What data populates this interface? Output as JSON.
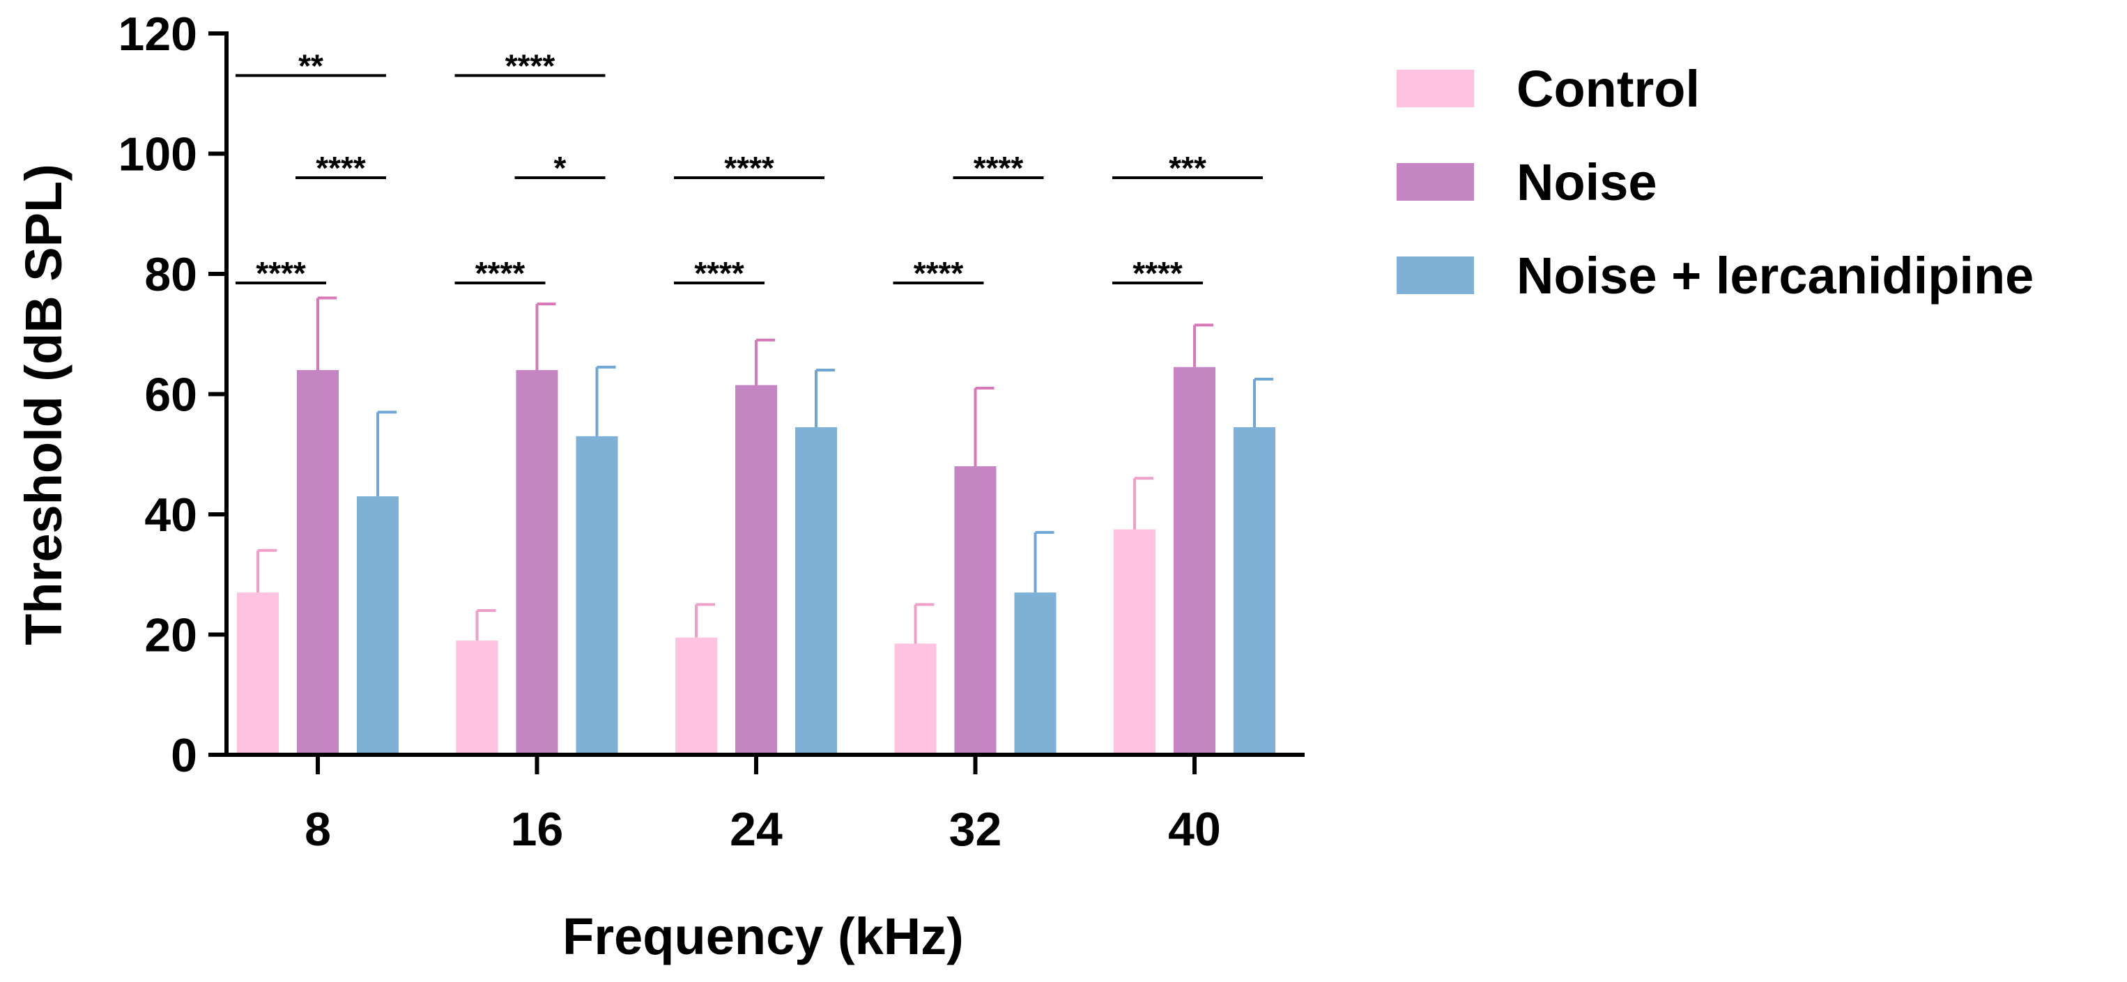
{
  "chart_data": {
    "type": "bar",
    "title": "",
    "xlabel": "Frequency (kHz)",
    "ylabel": "Threshold (dB SPL)",
    "ylim": [
      0,
      120
    ],
    "yticks": [
      0,
      20,
      40,
      60,
      80,
      100,
      120
    ],
    "categories": [
      "8",
      "16",
      "24",
      "32",
      "40"
    ],
    "legend_position": "right",
    "series": [
      {
        "name": "Control",
        "color": "#FFC2E1",
        "error_color": "#F0A0C8",
        "values": [
          27,
          19,
          19.5,
          18.5,
          37.5
        ],
        "errors": [
          7,
          5,
          5.5,
          6.5,
          8.5
        ]
      },
      {
        "name": "Noise",
        "color": "#C585C3",
        "error_color": "#D878B8",
        "values": [
          64,
          64,
          61.5,
          48,
          64.5
        ],
        "errors": [
          12,
          11,
          7.5,
          13,
          7
        ]
      },
      {
        "name": "Noise + lercanidipine",
        "color": "#7FB0D6",
        "error_color": "#6FA6D6",
        "values": [
          43,
          53,
          54.5,
          27,
          54.5
        ],
        "errors": [
          14,
          11.5,
          9.5,
          10,
          8
        ]
      }
    ],
    "annotations": [
      {
        "category": "8",
        "from": "Control",
        "to": "Noise",
        "y": 78.5,
        "label": "****"
      },
      {
        "category": "8",
        "from": "Noise",
        "to": "Noise + lercanidipine",
        "y": 96,
        "label": "****"
      },
      {
        "category": "8",
        "from": "Control",
        "to": "Noise + lercanidipine",
        "y": 113,
        "label": "**"
      },
      {
        "category": "16",
        "from": "Control",
        "to": "Noise",
        "y": 78.5,
        "label": "****"
      },
      {
        "category": "16",
        "from": "Noise",
        "to": "Noise + lercanidipine",
        "y": 96,
        "label": "*"
      },
      {
        "category": "16",
        "from": "Control",
        "to": "Noise + lercanidipine",
        "y": 113,
        "label": "****"
      },
      {
        "category": "24",
        "from": "Control",
        "to": "Noise",
        "y": 78.5,
        "label": "****"
      },
      {
        "category": "24",
        "from": "Control",
        "to": "Noise + lercanidipine",
        "y": 96,
        "label": "****"
      },
      {
        "category": "32",
        "from": "Control",
        "to": "Noise",
        "y": 78.5,
        "label": "****"
      },
      {
        "category": "32",
        "from": "Noise",
        "to": "Noise + lercanidipine",
        "y": 96,
        "label": "****"
      },
      {
        "category": "40",
        "from": "Control",
        "to": "Noise",
        "y": 78.5,
        "label": "****"
      },
      {
        "category": "40",
        "from": "Control",
        "to": "Noise + lercanidipine",
        "y": 96,
        "label": "***"
      }
    ]
  }
}
